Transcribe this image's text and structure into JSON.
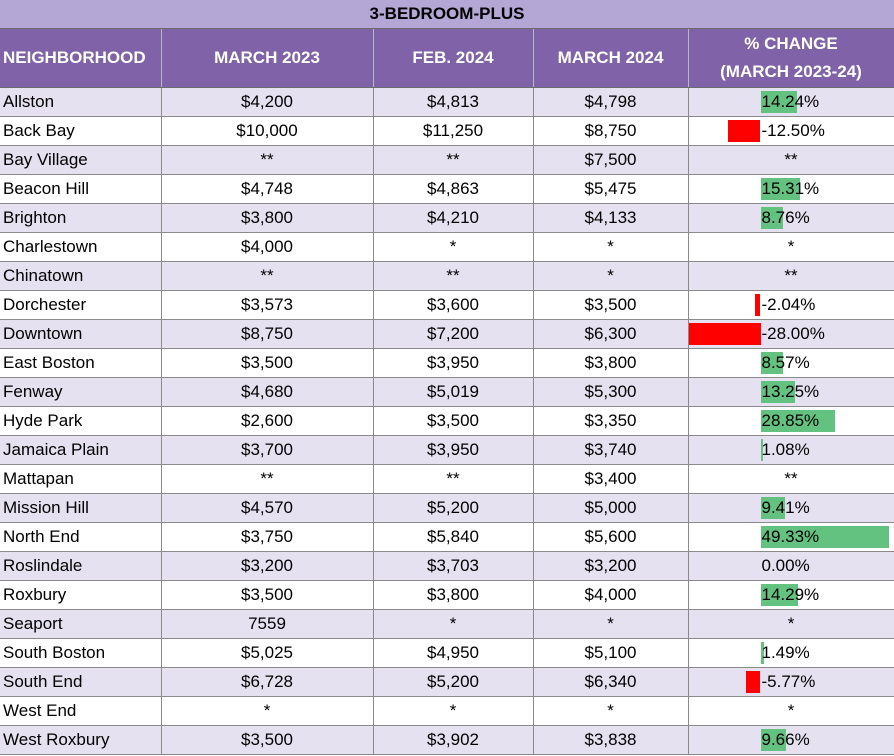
{
  "title": "3-BEDROOM-PLUS",
  "headers": {
    "neighborhood": "NEIGHBORHOOD",
    "march_2023": "MARCH 2023",
    "feb_2024": "FEB. 2024",
    "march_2024": "MARCH 2024",
    "pct_change_line1": "% CHANGE",
    "pct_change_line2": "(MARCH 2023-24)"
  },
  "colors": {
    "title_bg": "#b4a7d6",
    "header_bg": "#7f62a8",
    "band_odd": "#e5e1f0",
    "positive_bar": "#63c27f",
    "negative_bar": "#ff0000"
  },
  "rows": [
    {
      "name": "Allston",
      "mar23": "$4,200",
      "feb24": "$4,813",
      "mar24": "$4,798",
      "pct_text": "14.24%",
      "pct_value": 14.24
    },
    {
      "name": "Back Bay",
      "mar23": "$10,000",
      "feb24": "$11,250",
      "mar24": "$8,750",
      "pct_text": "-12.50%",
      "pct_value": -12.5
    },
    {
      "name": "Bay Village",
      "mar23": "**",
      "feb24": "**",
      "mar24": "$7,500",
      "pct_text": "**",
      "pct_value": null
    },
    {
      "name": "Beacon Hill",
      "mar23": "$4,748",
      "feb24": "$4,863",
      "mar24": "$5,475",
      "pct_text": "15.31%",
      "pct_value": 15.31
    },
    {
      "name": "Brighton",
      "mar23": "$3,800",
      "feb24": "$4,210",
      "mar24": "$4,133",
      "pct_text": "8.76%",
      "pct_value": 8.76
    },
    {
      "name": "Charlestown",
      "mar23": "$4,000",
      "feb24": "*",
      "mar24": "*",
      "pct_text": "*",
      "pct_value": null
    },
    {
      "name": "Chinatown",
      "mar23": "**",
      "feb24": "**",
      "mar24": "*",
      "pct_text": "**",
      "pct_value": null
    },
    {
      "name": "Dorchester",
      "mar23": "$3,573",
      "feb24": "$3,600",
      "mar24": "$3,500",
      "pct_text": "-2.04%",
      "pct_value": -2.04
    },
    {
      "name": "Downtown",
      "mar23": "$8,750",
      "feb24": "$7,200",
      "mar24": "$6,300",
      "pct_text": "-28.00%",
      "pct_value": -28.0
    },
    {
      "name": "East Boston",
      "mar23": "$3,500",
      "feb24": "$3,950",
      "mar24": "$3,800",
      "pct_text": "8.57%",
      "pct_value": 8.57
    },
    {
      "name": "Fenway",
      "mar23": "$4,680",
      "feb24": "$5,019",
      "mar24": "$5,300",
      "pct_text": "13.25%",
      "pct_value": 13.25
    },
    {
      "name": "Hyde Park",
      "mar23": "$2,600",
      "feb24": "$3,500",
      "mar24": "$3,350",
      "pct_text": "28.85%",
      "pct_value": 28.85
    },
    {
      "name": "Jamaica Plain",
      "mar23": "$3,700",
      "feb24": "$3,950",
      "mar24": "$3,740",
      "pct_text": "1.08%",
      "pct_value": 1.08
    },
    {
      "name": "Mattapan",
      "mar23": "**",
      "feb24": "**",
      "mar24": "$3,400",
      "pct_text": "**",
      "pct_value": null
    },
    {
      "name": "Mission Hill",
      "mar23": "$4,570",
      "feb24": "$5,200",
      "mar24": "$5,000",
      "pct_text": "9.41%",
      "pct_value": 9.41
    },
    {
      "name": "North End",
      "mar23": "$3,750",
      "feb24": "$5,840",
      "mar24": "$5,600",
      "pct_text": "49.33%",
      "pct_value": 49.33
    },
    {
      "name": "Roslindale",
      "mar23": "$3,200",
      "feb24": "$3,703",
      "mar24": "$3,200",
      "pct_text": "0.00%",
      "pct_value": 0.0
    },
    {
      "name": "Roxbury",
      "mar23": "$3,500",
      "feb24": "$3,800",
      "mar24": "$4,000",
      "pct_text": "14.29%",
      "pct_value": 14.29
    },
    {
      "name": "Seaport",
      "mar23": "7559",
      "feb24": "*",
      "mar24": "*",
      "pct_text": "*",
      "pct_value": null
    },
    {
      "name": "South Boston",
      "mar23": "$5,025",
      "feb24": "$4,950",
      "mar24": "$5,100",
      "pct_text": "1.49%",
      "pct_value": 1.49
    },
    {
      "name": "South End",
      "mar23": "$6,728",
      "feb24": "$5,200",
      "mar24": "$6,340",
      "pct_text": "-5.77%",
      "pct_value": -5.77
    },
    {
      "name": "West End",
      "mar23": "*",
      "feb24": "*",
      "mar24": "*",
      "pct_text": "*",
      "pct_value": null
    },
    {
      "name": "West Roxbury",
      "mar23": "$3,500",
      "feb24": "$3,902",
      "mar24": "$3,838",
      "pct_text": "9.66%",
      "pct_value": 9.66
    }
  ]
}
